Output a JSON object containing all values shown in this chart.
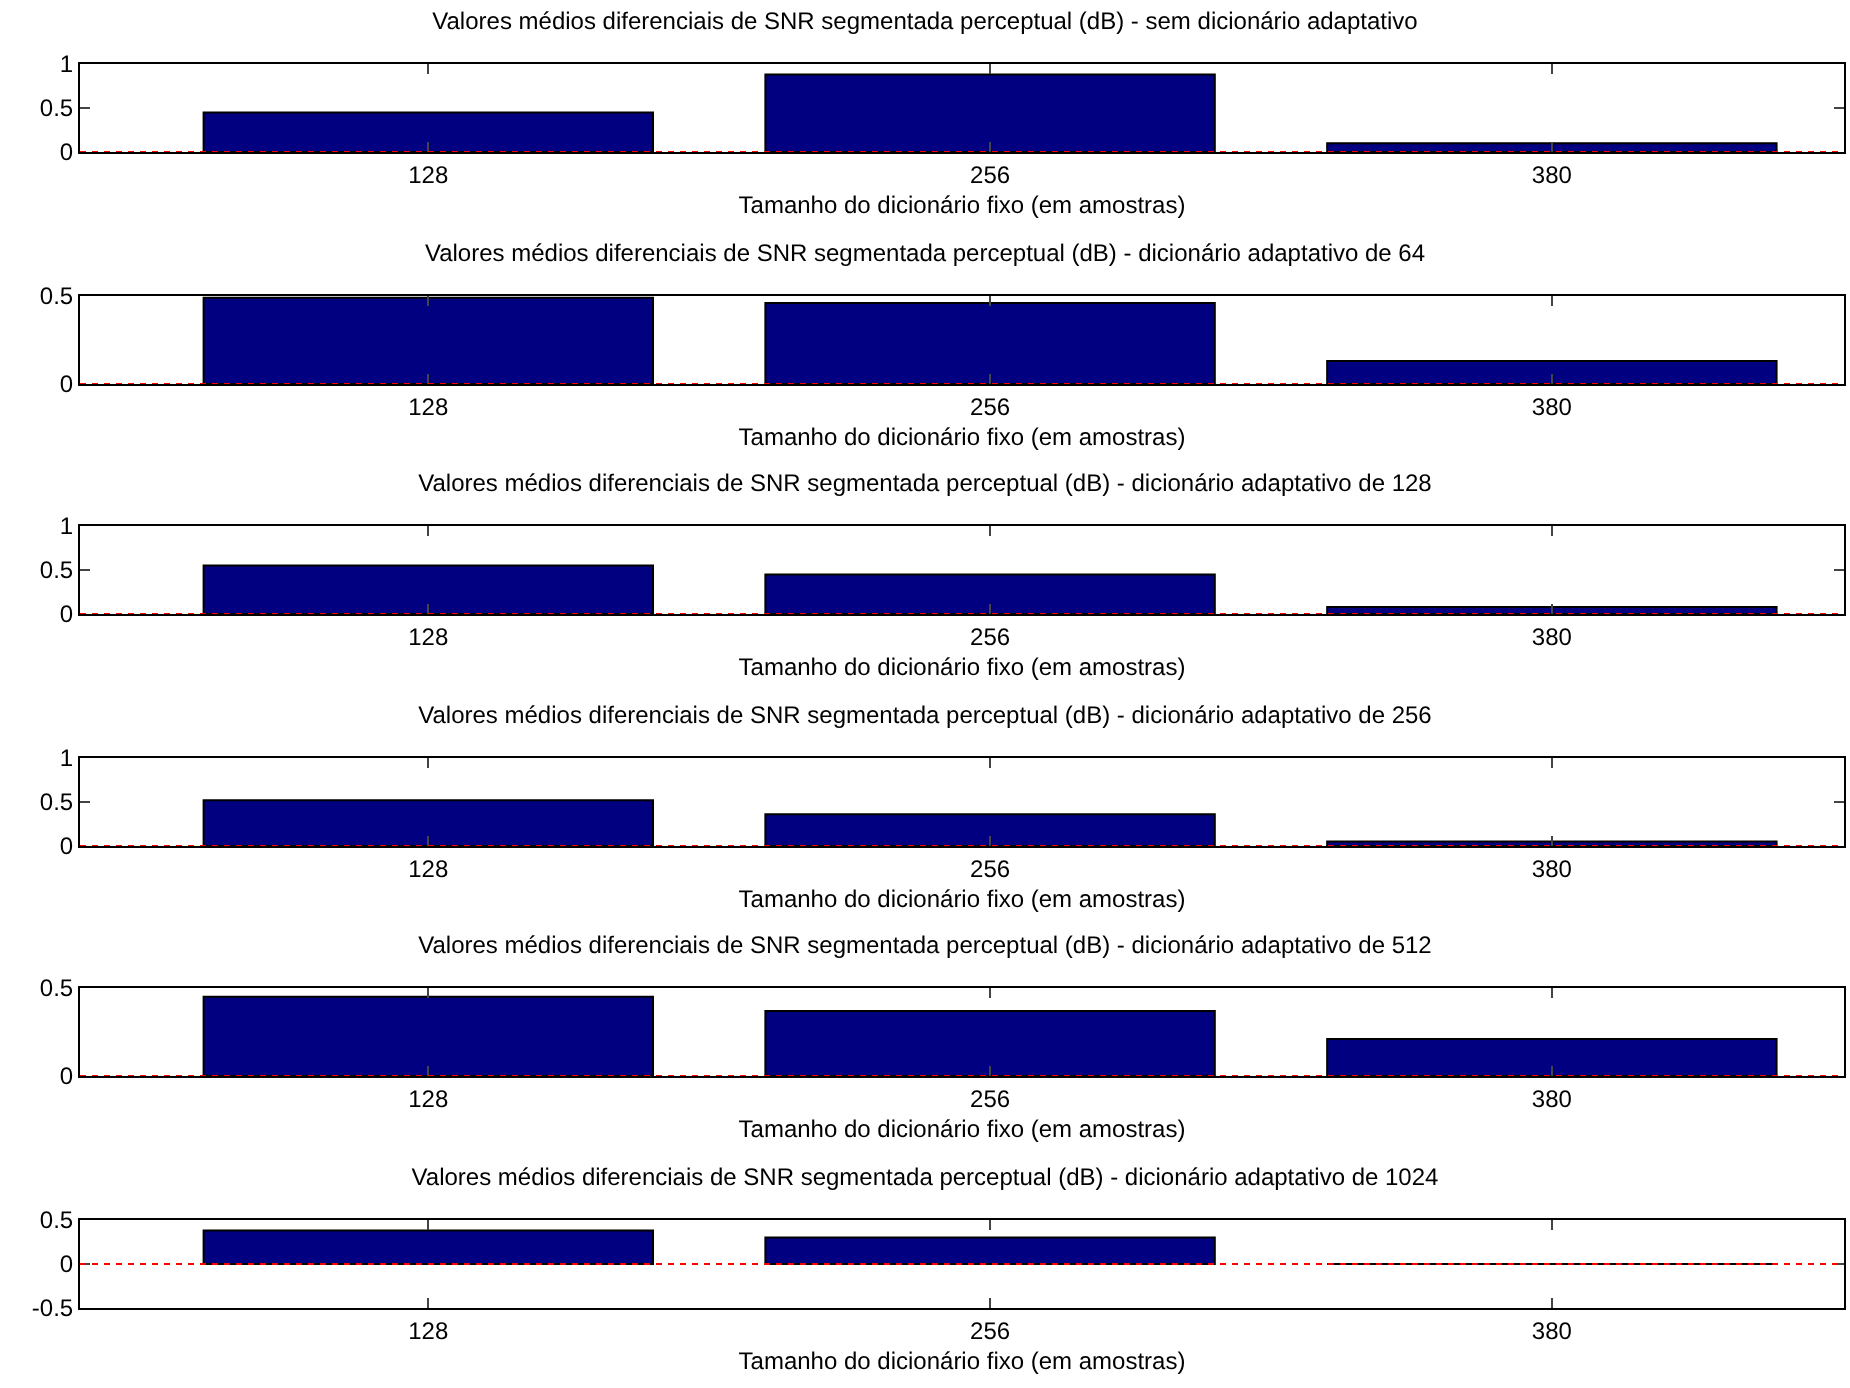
{
  "chart_data": [
    {
      "type": "bar",
      "title": "Valores médios diferenciais de SNR segmentada perceptual (dB) - sem dicionário adaptativo",
      "xlabel": "Tamanho do dicionário fixo (em amostras)",
      "categories": [
        "128",
        "256",
        "380"
      ],
      "values": [
        0.45,
        0.88,
        0.1
      ],
      "color": "#000080",
      "ylim": [
        0,
        1
      ],
      "yticks": [
        0,
        0.5,
        1
      ],
      "grid": false,
      "legend": false,
      "ref_lines": [
        {
          "axis": "y",
          "value": 0,
          "color": "#ff0000",
          "line_style": "dotted"
        }
      ]
    },
    {
      "type": "bar",
      "title": "Valores médios diferenciais de SNR segmentada perceptual (dB) - dicionário adaptativo de 64",
      "xlabel": "Tamanho do dicionário fixo (em amostras)",
      "categories": [
        "128",
        "256",
        "380"
      ],
      "values": [
        0.49,
        0.46,
        0.13
      ],
      "color": "#000080",
      "ylim": [
        0,
        0.5
      ],
      "yticks": [
        0,
        0.5
      ],
      "grid": false,
      "legend": false,
      "ref_lines": [
        {
          "axis": "y",
          "value": 0,
          "color": "#ff0000",
          "line_style": "dotted"
        }
      ]
    },
    {
      "type": "bar",
      "title": "Valores médios diferenciais de SNR segmentada perceptual (dB) - dicionário adaptativo de 128",
      "xlabel": "Tamanho do dicionário fixo (em amostras)",
      "categories": [
        "128",
        "256",
        "380"
      ],
      "values": [
        0.55,
        0.45,
        0.08
      ],
      "color": "#000080",
      "ylim": [
        0,
        1
      ],
      "yticks": [
        0,
        0.5,
        1
      ],
      "grid": false,
      "legend": false,
      "ref_lines": [
        {
          "axis": "y",
          "value": 0,
          "color": "#ff0000",
          "line_style": "dotted"
        }
      ]
    },
    {
      "type": "bar",
      "title": "Valores médios diferenciais de SNR segmentada perceptual (dB) - dicionário adaptativo de 256",
      "xlabel": "Tamanho do dicionário fixo (em amostras)",
      "categories": [
        "128",
        "256",
        "380"
      ],
      "values": [
        0.52,
        0.36,
        0.05
      ],
      "color": "#000080",
      "ylim": [
        0,
        1
      ],
      "yticks": [
        0,
        0.5,
        1
      ],
      "grid": false,
      "legend": false,
      "ref_lines": [
        {
          "axis": "y",
          "value": 0,
          "color": "#ff0000",
          "line_style": "dotted"
        }
      ]
    },
    {
      "type": "bar",
      "title": "Valores médios diferenciais de SNR segmentada perceptual (dB) - dicionário adaptativo de 512",
      "xlabel": "Tamanho do dicionário fixo (em amostras)",
      "categories": [
        "128",
        "256",
        "380"
      ],
      "values": [
        0.45,
        0.37,
        0.21
      ],
      "color": "#000080",
      "ylim": [
        0,
        0.5
      ],
      "yticks": [
        0,
        0.5
      ],
      "grid": false,
      "legend": false,
      "ref_lines": [
        {
          "axis": "y",
          "value": 0,
          "color": "#ff0000",
          "line_style": "dotted"
        }
      ]
    },
    {
      "type": "bar",
      "title": "Valores médios diferenciais de SNR segmentada perceptual (dB) - dicionário adaptativo de 1024",
      "xlabel": "Tamanho do dicionário fixo (em amostras)",
      "categories": [
        "128",
        "256",
        "380"
      ],
      "values": [
        0.38,
        0.3,
        0
      ],
      "colors": [
        "#000080",
        "#000080",
        "#000000"
      ],
      "ylim": [
        -0.5,
        0.5
      ],
      "yticks": [
        -0.5,
        0,
        0.5
      ],
      "grid": false,
      "legend": false,
      "ref_lines": [
        {
          "axis": "y",
          "value": 0,
          "color": "#ff0000",
          "line_style": "dotted"
        }
      ]
    }
  ]
}
